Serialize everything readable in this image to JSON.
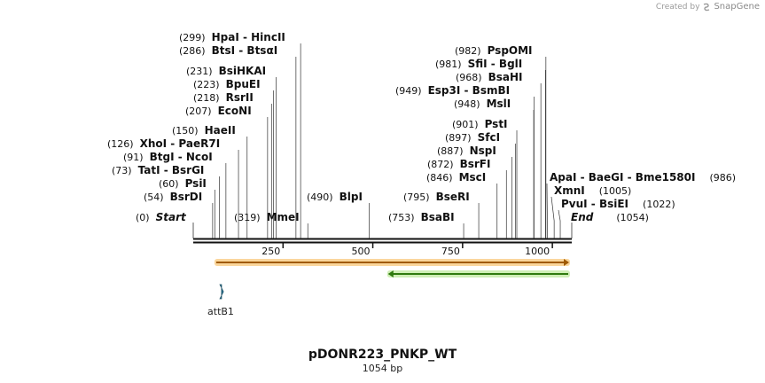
{
  "credit": {
    "text": "Created by",
    "brand": "SnapGene"
  },
  "plasmid": {
    "name": "pDONR223_PNKP_WT",
    "length_label": "1054 bp",
    "length": 1054
  },
  "ticks": [
    {
      "pos": 250,
      "label": "250"
    },
    {
      "pos": 500,
      "label": "500"
    },
    {
      "pos": 750,
      "label": "750"
    },
    {
      "pos": 1000,
      "label": "1000"
    }
  ],
  "sites": [
    {
      "name": "HpaI  -  HincII",
      "poslabel": "(299)",
      "pos": 299
    },
    {
      "name": "BtsI  -  BtsαI",
      "poslabel": "(286)",
      "pos": 286
    },
    {
      "name": "BsiHKAI",
      "poslabel": "(231)",
      "pos": 231
    },
    {
      "name": "BpuEI",
      "poslabel": "(223)",
      "pos": 223
    },
    {
      "name": "RsrII",
      "poslabel": "(218)",
      "pos": 218
    },
    {
      "name": "EcoNI",
      "poslabel": "(207)",
      "pos": 207
    },
    {
      "name": "HaeII",
      "poslabel": "(150)",
      "pos": 150
    },
    {
      "name": "XhoI  -  PaeR7I",
      "poslabel": "(126)",
      "pos": 126
    },
    {
      "name": "BtgI  -  NcoI",
      "poslabel": "(91)",
      "pos": 91
    },
    {
      "name": "TatI  -  BsrGI",
      "poslabel": "(73)",
      "pos": 73
    },
    {
      "name": "PsiI",
      "poslabel": "(60)",
      "pos": 60
    },
    {
      "name": "BsrDI",
      "poslabel": "(54)",
      "pos": 54
    },
    {
      "name": "MmeI",
      "poslabel": "(319)",
      "pos": 319
    },
    {
      "name": "BlpI",
      "poslabel": "(490)",
      "pos": 490
    },
    {
      "name": "BsaBI",
      "poslabel": "(753)",
      "pos": 753
    },
    {
      "name": "BseRI",
      "poslabel": "(795)",
      "pos": 795
    },
    {
      "name": "MscI",
      "poslabel": "(846)",
      "pos": 846
    },
    {
      "name": "BsrFI",
      "poslabel": "(872)",
      "pos": 872
    },
    {
      "name": "NspI",
      "poslabel": "(887)",
      "pos": 887
    },
    {
      "name": "SfcI",
      "poslabel": "(897)",
      "pos": 897
    },
    {
      "name": "PstI",
      "poslabel": "(901)",
      "pos": 901
    },
    {
      "name": "MslI",
      "poslabel": "(948)",
      "pos": 948
    },
    {
      "name": "Esp3I  -  BsmBI",
      "poslabel": "(949)",
      "pos": 949
    },
    {
      "name": "BsaHI",
      "poslabel": "(968)",
      "pos": 968
    },
    {
      "name": "SfiI  -  BglI",
      "poslabel": "(981)",
      "pos": 981
    },
    {
      "name": "PspOMI",
      "poslabel": "(982)",
      "pos": 982
    },
    {
      "name": "ApaI  -  BaeGI  -  Bme1580I",
      "poslabel": "(986)",
      "pos": 986
    },
    {
      "name": "XmnI",
      "poslabel": "(1005)",
      "pos": 1005
    },
    {
      "name": "PvuI  -  BsiEI",
      "poslabel": "(1022)",
      "pos": 1022
    }
  ],
  "ends": [
    {
      "name": "Start",
      "poslabel": "(0)",
      "pos": 0
    },
    {
      "name": "End",
      "poslabel": "(1054)",
      "pos": 1054
    }
  ],
  "features": [
    {
      "name": "orange-orf-arrow",
      "start": 64,
      "end": 1054,
      "strand": "forward",
      "fill": "#f6b44b",
      "edge": "#a05a00"
    },
    {
      "name": "green-orf-arrow",
      "start": 545,
      "end": 1054,
      "strand": "reverse",
      "fill": "#a8e07a",
      "edge": "#2f7a0f"
    },
    {
      "name": "attB1",
      "label": "attB1",
      "start": 64,
      "end": 89,
      "strand": "forward",
      "fill": "#2e7a99",
      "edge": "#1b4f64"
    }
  ],
  "colors": {
    "backbone": "#111111",
    "line": "#333333"
  }
}
